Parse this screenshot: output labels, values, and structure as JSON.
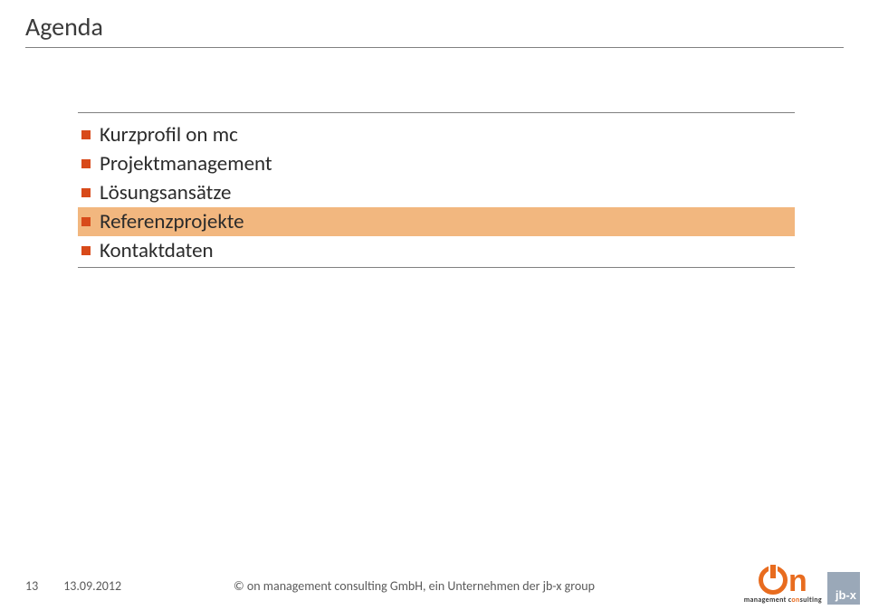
{
  "title": "Agenda",
  "agenda": {
    "items": [
      {
        "label": "Kurzprofil on mc",
        "highlighted": false
      },
      {
        "label": "Projektmanagement",
        "highlighted": false
      },
      {
        "label": "Lösungsansätze",
        "highlighted": false
      },
      {
        "label": "Referenzprojekte",
        "highlighted": true
      },
      {
        "label": "Kontaktdaten",
        "highlighted": false
      }
    ],
    "bullet_color": "#d84a1a",
    "highlight_color": "#f2b77f",
    "text_color": "#2b2b2b",
    "font_size": 23
  },
  "footer": {
    "page": "13",
    "date": "13.09.2012",
    "copyright": "© on management consulting  GmbH, ein Unternehmen der jb-x group"
  },
  "logo": {
    "primary_color": "#e86c1f",
    "secondary_box_color": "#9aa8b8",
    "sub_text_pre": "management c",
    "sub_text_accent": "on",
    "sub_text_post": "sulting",
    "jbx_label": "jb-x"
  },
  "styling": {
    "rule_color": "#808080",
    "title_color": "#3b3b3b",
    "title_fontsize": 28,
    "footer_color": "#5a5a5a",
    "footer_fontsize": 14,
    "background_color": "#ffffff"
  }
}
